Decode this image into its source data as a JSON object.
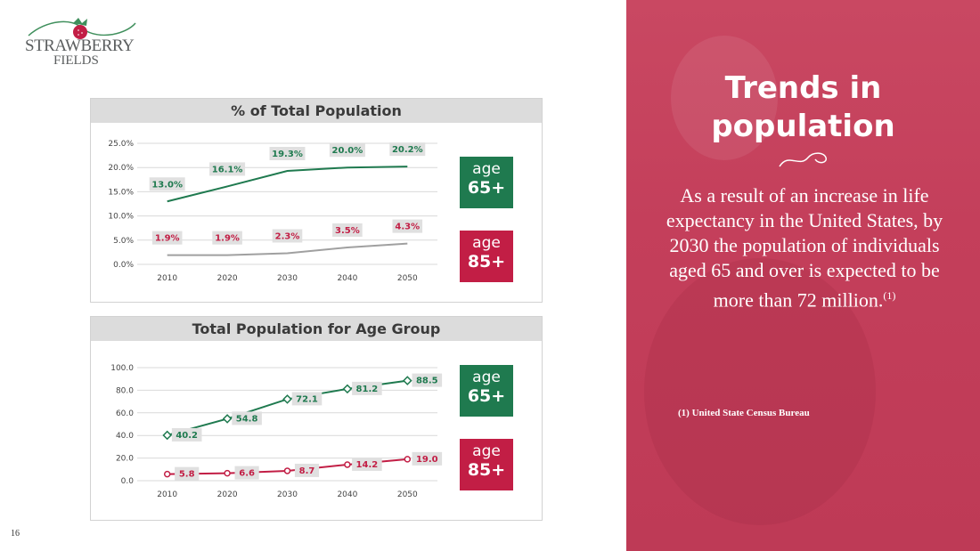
{
  "logo": {
    "line1": "STRAWBERRY",
    "line2": "FIELDS"
  },
  "colors": {
    "green": "#1f7a4f",
    "red": "#c21e45",
    "grey_line": "#a0a0a0",
    "panel": "#c43f5b"
  },
  "chart_data": [
    {
      "type": "line",
      "title": "% of Total Population",
      "x": [
        2010,
        2020,
        2030,
        2040,
        2050
      ],
      "ylim": [
        0,
        25
      ],
      "yticks": [
        "0.0%",
        "5.0%",
        "10.0%",
        "15.0%",
        "20.0%",
        "25.0%"
      ],
      "grid": true,
      "series": [
        {
          "key": "age65",
          "values": [
            13.0,
            16.1,
            19.3,
            20.0,
            20.2
          ],
          "labels": [
            "13.0%",
            "16.1%",
            "19.3%",
            "20.0%",
            "20.2%"
          ],
          "color": "#1f7a4f"
        },
        {
          "key": "age85",
          "values": [
            1.9,
            1.9,
            2.3,
            3.5,
            4.3
          ],
          "labels": [
            "1.9%",
            "1.9%",
            "2.3%",
            "3.5%",
            "4.3%"
          ],
          "color": "#c21e45",
          "line_color": "#a0a0a0"
        }
      ]
    },
    {
      "type": "line",
      "title": "Total Population for Age Group",
      "x": [
        2010,
        2020,
        2030,
        2040,
        2050
      ],
      "ylim": [
        0,
        100
      ],
      "yticks": [
        "0.0",
        "20.0",
        "40.0",
        "60.0",
        "80.0",
        "100.0"
      ],
      "grid": true,
      "markers": true,
      "series": [
        {
          "key": "age65",
          "values": [
            40.2,
            54.8,
            72.1,
            81.2,
            88.5
          ],
          "labels": [
            "40.2",
            "54.8",
            "72.1",
            "81.2",
            "88.5"
          ],
          "color": "#1f7a4f"
        },
        {
          "key": "age85",
          "values": [
            5.8,
            6.6,
            8.7,
            14.2,
            19.0
          ],
          "labels": [
            "5.8",
            "6.6",
            "8.7",
            "14.2",
            "19.0"
          ],
          "color": "#c21e45"
        }
      ]
    }
  ],
  "badges": {
    "top65": {
      "l1": "age",
      "l2": "65+"
    },
    "top85": {
      "l1": "age",
      "l2": "85+"
    },
    "bot65": {
      "l1": "age",
      "l2": "65+"
    },
    "bot85": {
      "l1": "age",
      "l2": "85+"
    }
  },
  "panel": {
    "headline_l1": "Trends in",
    "headline_l2": "population",
    "body": "As a result of an increase in life expectancy in the United States, by 2030 the population of individuals aged 65 and over is expected to be more than 72 million.",
    "body_ref": "(1)",
    "footnote": "(1) United State Census Bureau"
  },
  "page_number": "16"
}
